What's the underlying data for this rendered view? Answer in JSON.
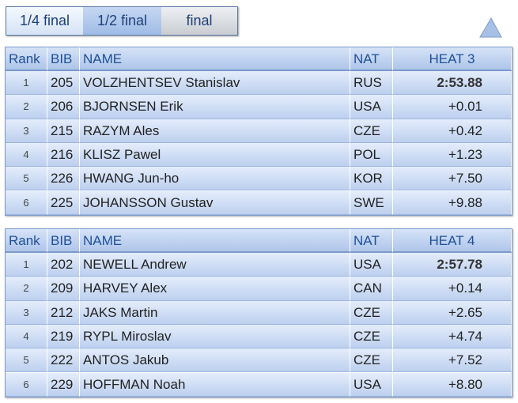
{
  "tabs": [
    "1/4 final",
    "1/2 final",
    "final"
  ],
  "tables": [
    {
      "header": [
        "Rank",
        "BIB",
        "NAME",
        "NAT",
        "HEAT 3"
      ],
      "rows": [
        [
          "1",
          "205",
          "VOLZHENTSEV Stanislav",
          "RUS",
          "2:53.88"
        ],
        [
          "2",
          "206",
          "BJORNSEN Erik",
          "USA",
          "+0.01"
        ],
        [
          "3",
          "215",
          "RAZYM Ales",
          "CZE",
          "+0.42"
        ],
        [
          "4",
          "216",
          "KLISZ Pawel",
          "POL",
          "+1.23"
        ],
        [
          "5",
          "226",
          "HWANG Jun-ho",
          "KOR",
          "+7.50"
        ],
        [
          "6",
          "225",
          "JOHANSSON Gustav",
          "SWE",
          "+9.88"
        ]
      ]
    },
    {
      "header": [
        "Rank",
        "BIB",
        "NAME",
        "NAT",
        "HEAT 4"
      ],
      "rows": [
        [
          "1",
          "202",
          "NEWELL Andrew",
          "USA",
          "2:57.78"
        ],
        [
          "2",
          "209",
          "HARVEY Alex",
          "CAN",
          "+0.14"
        ],
        [
          "3",
          "212",
          "JAKS Martin",
          "CZE",
          "+2.65"
        ],
        [
          "4",
          "219",
          "RYPL Miroslav",
          "CZE",
          "+4.74"
        ],
        [
          "5",
          "222",
          "ANTOS Jakub",
          "CZE",
          "+7.52"
        ],
        [
          "6",
          "229",
          "HOFFMAN Noah",
          "USA",
          "+8.80"
        ]
      ]
    }
  ]
}
